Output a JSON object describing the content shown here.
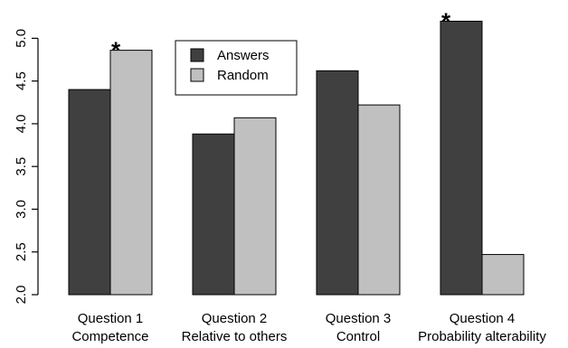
{
  "chart_data": {
    "type": "bar",
    "categories": [
      [
        "Question 1",
        "Competence"
      ],
      [
        "Question 2",
        "Relative to others"
      ],
      [
        "Question 3",
        "Control"
      ],
      [
        "Question 4",
        "Probability alterability"
      ]
    ],
    "series": [
      {
        "name": "Answers",
        "color": "#404040",
        "values": [
          4.4,
          3.88,
          4.62,
          5.2
        ]
      },
      {
        "name": "Random",
        "color": "#c0c0c0",
        "values": [
          4.86,
          4.07,
          4.22,
          2.47
        ]
      }
    ],
    "significance_marks": [
      {
        "category_index": 0,
        "series_index": 1,
        "symbol": "*"
      },
      {
        "category_index": 3,
        "series_index": 0,
        "symbol": "*"
      }
    ],
    "ylim": [
      2.0,
      5.3
    ],
    "yticks": [
      "2.0",
      "2.5",
      "3.0",
      "3.5",
      "4.0",
      "4.5",
      "5.0"
    ],
    "legend_position": "top-center",
    "grid": false
  }
}
